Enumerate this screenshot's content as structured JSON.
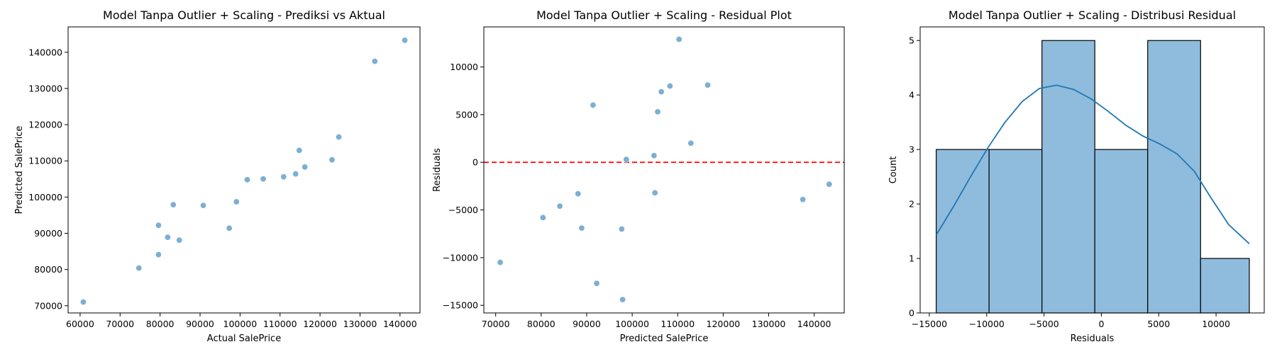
{
  "chart_data": [
    {
      "type": "scatter",
      "title": "Model Tanpa Outlier + Scaling - Prediksi vs Aktual",
      "xlabel": "Actual SalePrice",
      "ylabel": "Predicted SalePrice",
      "xlim": [
        57000,
        145000
      ],
      "ylim": [
        68000,
        147000
      ],
      "xticks": [
        60000,
        70000,
        80000,
        90000,
        100000,
        110000,
        120000,
        130000,
        140000
      ],
      "yticks": [
        70000,
        80000,
        90000,
        100000,
        110000,
        120000,
        130000,
        140000
      ],
      "color": "#7bafd4",
      "points": [
        [
          60800,
          71000
        ],
        [
          74700,
          80400
        ],
        [
          79600,
          84100
        ],
        [
          79600,
          92200
        ],
        [
          81900,
          88900
        ],
        [
          83300,
          97900
        ],
        [
          84800,
          88100
        ],
        [
          90800,
          97700
        ],
        [
          97300,
          91400
        ],
        [
          99100,
          98700
        ],
        [
          101800,
          104800
        ],
        [
          105800,
          105000
        ],
        [
          110900,
          105600
        ],
        [
          113900,
          106400
        ],
        [
          114800,
          112900
        ],
        [
          116200,
          108300
        ],
        [
          123000,
          110300
        ],
        [
          124700,
          116600
        ],
        [
          133700,
          137500
        ],
        [
          141200,
          143300
        ]
      ]
    },
    {
      "type": "scatter",
      "title": "Model Tanpa Outlier + Scaling - Residual Plot",
      "xlabel": "Predicted SalePrice",
      "ylabel": "Residuals",
      "xlim": [
        67400,
        146600
      ],
      "ylim": [
        -15800,
        14200
      ],
      "xticks": [
        70000,
        80000,
        90000,
        100000,
        110000,
        120000,
        130000,
        140000
      ],
      "yticks": [
        -15000,
        -10000,
        -5000,
        0,
        5000,
        10000
      ],
      "reference_line": {
        "y": 0,
        "color": "#ff0000",
        "style": "dashed"
      },
      "color": "#7bafd4",
      "points": [
        [
          71000,
          -10500
        ],
        [
          80400,
          -5800
        ],
        [
          84100,
          -4600
        ],
        [
          88100,
          -3300
        ],
        [
          88900,
          -6900
        ],
        [
          91400,
          6000
        ],
        [
          92200,
          -12700
        ],
        [
          97700,
          -7000
        ],
        [
          97900,
          -14400
        ],
        [
          98700,
          300
        ],
        [
          104800,
          700
        ],
        [
          105000,
          -3200
        ],
        [
          105600,
          5300
        ],
        [
          106400,
          7400
        ],
        [
          108300,
          8000
        ],
        [
          110300,
          12900
        ],
        [
          112900,
          2000
        ],
        [
          116600,
          8100
        ],
        [
          137500,
          -3900
        ],
        [
          143300,
          -2300
        ]
      ]
    },
    {
      "type": "histogram",
      "title": "Model Tanpa Outlier + Scaling - Distribusi Residual",
      "xlabel": "Residuals",
      "ylabel": "Count",
      "xlim": [
        -15800,
        14200
      ],
      "ylim": [
        0,
        5.25
      ],
      "xticks": [
        -15000,
        -10000,
        -5000,
        0,
        5000,
        10000
      ],
      "yticks": [
        0,
        1,
        2,
        3,
        4,
        5
      ],
      "bins": [
        {
          "start": -14400,
          "end": -9790,
          "count": 3
        },
        {
          "start": -9790,
          "end": -5180,
          "count": 3
        },
        {
          "start": -5180,
          "end": -570,
          "count": 5
        },
        {
          "start": -570,
          "end": 4040,
          "count": 3
        },
        {
          "start": 4040,
          "end": 8650,
          "count": 5
        },
        {
          "start": 8650,
          "end": 12900,
          "count": 1
        }
      ],
      "bar_color": "#8fbcdd",
      "kde_color": "#1f77b4",
      "kde": [
        [
          -14400,
          1.43
        ],
        [
          -12900,
          1.95
        ],
        [
          -11400,
          2.5
        ],
        [
          -9900,
          3.03
        ],
        [
          -8400,
          3.5
        ],
        [
          -6900,
          3.88
        ],
        [
          -5400,
          4.12
        ],
        [
          -3900,
          4.18
        ],
        [
          -2400,
          4.1
        ],
        [
          -900,
          3.93
        ],
        [
          600,
          3.7
        ],
        [
          2100,
          3.45
        ],
        [
          3600,
          3.25
        ],
        [
          5100,
          3.1
        ],
        [
          6600,
          2.92
        ],
        [
          8100,
          2.6
        ],
        [
          9600,
          2.1
        ],
        [
          11100,
          1.62
        ],
        [
          12900,
          1.27
        ]
      ]
    }
  ]
}
